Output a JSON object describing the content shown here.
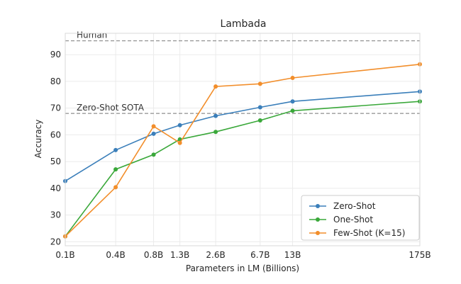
{
  "chart_data": {
    "type": "line",
    "title": "Lambada",
    "xlabel": "Parameters in LM (Billions)",
    "ylabel": "Accuracy",
    "x_tick_labels": [
      "0.1B",
      "0.4B",
      "0.8B",
      "1.3B",
      "2.6B",
      "6.7B",
      "13B",
      "175B"
    ],
    "x_scale": "log",
    "x": [
      0.125,
      0.35,
      0.76,
      1.3,
      2.7,
      6.7,
      13,
      175
    ],
    "y_ticks": [
      20,
      30,
      40,
      50,
      60,
      70,
      80,
      90
    ],
    "ylim": [
      18.5,
      98
    ],
    "grid": true,
    "legend_position": "lower-right",
    "reference_lines": [
      {
        "label": "Human",
        "value": 95.2,
        "color": "#999999"
      },
      {
        "label": "Zero-Shot SOTA",
        "value": 68.0,
        "color": "#999999"
      }
    ],
    "series": [
      {
        "name": "Zero-Shot",
        "color": "#3b7fba",
        "values": [
          42.7,
          54.3,
          60.4,
          63.6,
          67.1,
          70.3,
          72.5,
          76.2
        ]
      },
      {
        "name": "One-Shot",
        "color": "#3aa83a",
        "values": [
          22.0,
          47.1,
          52.6,
          58.3,
          61.1,
          65.4,
          69.0,
          72.5
        ]
      },
      {
        "name": "Few-Shot (K=15)",
        "color": "#f28e2b",
        "values": [
          22.0,
          40.4,
          63.2,
          57.0,
          78.1,
          79.1,
          81.3,
          86.4
        ]
      }
    ]
  }
}
